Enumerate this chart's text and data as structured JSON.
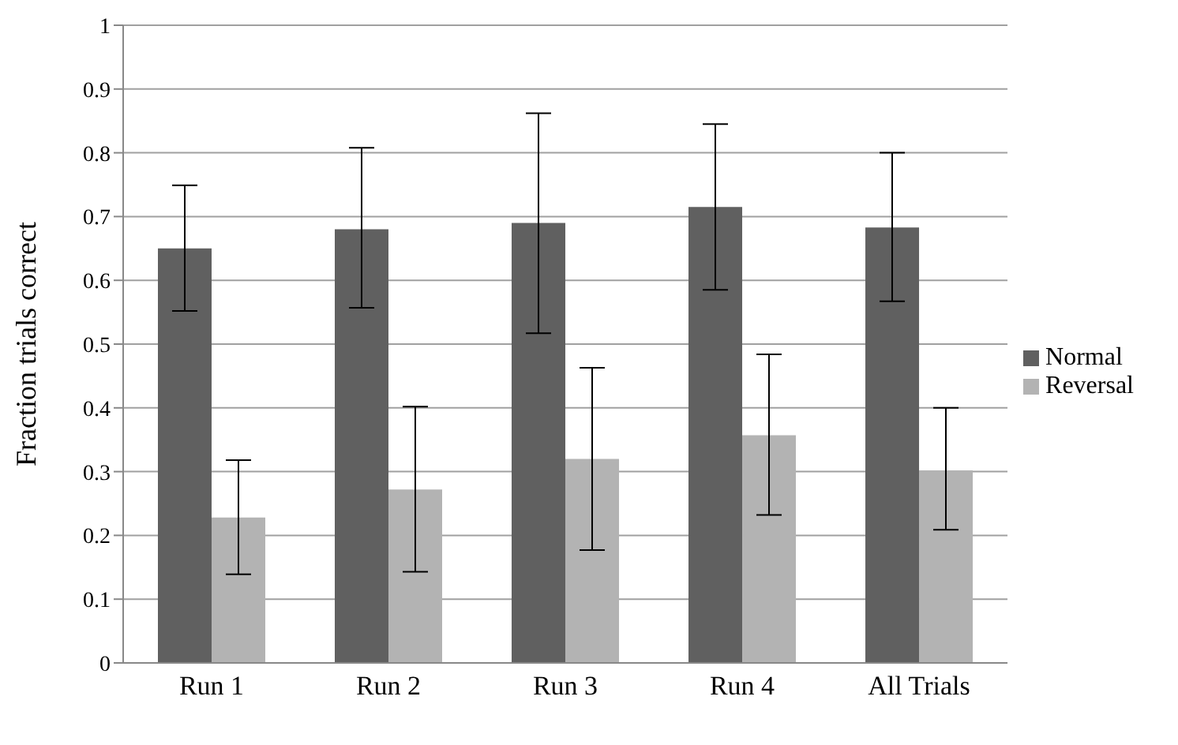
{
  "chart_data": {
    "type": "bar",
    "ylabel": "Fraction trials correct",
    "categories": [
      "Run 1",
      "Run 2",
      "Run 3",
      "Run 4",
      "All Trials"
    ],
    "series": [
      {
        "name": "Normal",
        "color": "#606060",
        "values": [
          0.65,
          0.68,
          0.69,
          0.715,
          0.683
        ],
        "errors": [
          [
            0.552,
            0.749
          ],
          [
            0.557,
            0.808
          ],
          [
            0.517,
            0.862
          ],
          [
            0.585,
            0.845
          ],
          [
            0.567,
            0.8
          ]
        ]
      },
      {
        "name": "Reversal",
        "color": "#b3b3b3",
        "values": [
          0.228,
          0.272,
          0.32,
          0.357,
          0.302
        ],
        "errors": [
          [
            0.139,
            0.318
          ],
          [
            0.143,
            0.402
          ],
          [
            0.177,
            0.463
          ],
          [
            0.232,
            0.484
          ],
          [
            0.209,
            0.4
          ]
        ]
      }
    ],
    "ylim": [
      0,
      1
    ],
    "yticks": [
      0,
      0.1,
      0.2,
      0.3,
      0.4,
      0.5,
      0.6,
      0.7,
      0.8,
      0.9,
      1
    ],
    "grid": "y",
    "legend": "right"
  }
}
